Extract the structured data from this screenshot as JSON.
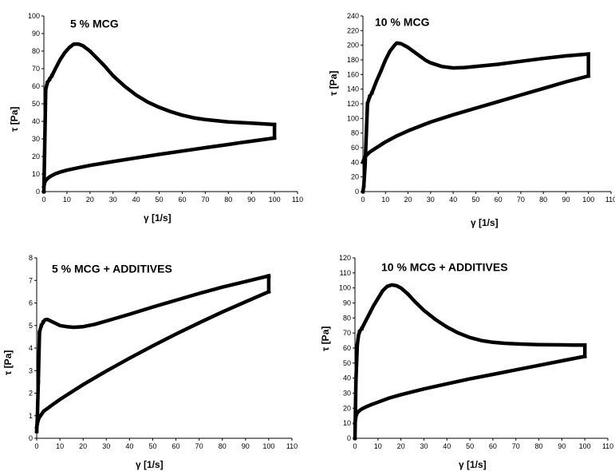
{
  "chart_data": [
    {
      "type": "line",
      "title": "5 % MCG",
      "xlabel": "γ [1/s]",
      "ylabel": "τ [Pa]",
      "xlim": [
        0,
        110
      ],
      "ylim": [
        0,
        100
      ],
      "xticks": [
        0,
        10,
        20,
        30,
        40,
        50,
        60,
        70,
        80,
        90,
        100,
        110
      ],
      "yticks": [
        0,
        10,
        20,
        30,
        40,
        50,
        60,
        70,
        80,
        90,
        100
      ],
      "grid": false,
      "series": [
        {
          "x": [
            0,
            0.3,
            0.8,
            1.5,
            2.5,
            3.5,
            5,
            7,
            9,
            11,
            13,
            15,
            17,
            20,
            23,
            26,
            30,
            35,
            40,
            45,
            50,
            55,
            60,
            65,
            70,
            75,
            80,
            85,
            90,
            95,
            100
          ],
          "y": [
            0,
            22,
            58,
            62,
            64,
            66,
            70,
            75,
            79,
            82,
            84,
            84,
            83,
            80,
            76,
            72,
            66,
            60,
            55,
            51,
            48,
            45.5,
            43.5,
            42,
            41,
            40.3,
            39.7,
            39.3,
            39,
            38.6,
            38.2
          ]
        },
        {
          "x": [
            100,
            100
          ],
          "y": [
            38.2,
            30.5
          ]
        },
        {
          "x": [
            100,
            95,
            90,
            85,
            80,
            70,
            60,
            50,
            40,
            30,
            20,
            15,
            10,
            7,
            5,
            3,
            2,
            1,
            0.5,
            0.2,
            0
          ],
          "y": [
            30.5,
            29.6,
            28.7,
            27.8,
            26.8,
            25,
            23.1,
            21.2,
            19.2,
            17.1,
            14.9,
            13.6,
            12.2,
            11.1,
            10.2,
            8.8,
            7.9,
            6.7,
            5.6,
            4.2,
            3
          ]
        }
      ]
    },
    {
      "type": "line",
      "title": "10 % MCG",
      "xlabel": "γ [1/s]",
      "ylabel": "τ [Pa]",
      "xlim": [
        0,
        110
      ],
      "ylim": [
        0,
        240
      ],
      "xticks": [
        0,
        10,
        20,
        30,
        40,
        50,
        60,
        70,
        80,
        90,
        100,
        110
      ],
      "yticks": [
        0,
        20,
        40,
        60,
        80,
        100,
        120,
        140,
        160,
        180,
        200,
        220,
        240
      ],
      "grid": false,
      "series": [
        {
          "x": [
            0,
            0.4,
            1,
            2,
            3,
            4,
            5,
            6,
            8,
            10,
            12,
            14,
            15,
            17,
            20,
            24,
            28,
            30,
            35,
            40,
            45,
            50,
            60,
            70,
            80,
            90,
            100
          ],
          "y": [
            0,
            8,
            38,
            120,
            130,
            135,
            143,
            151,
            165,
            180,
            192,
            200,
            203,
            202,
            197,
            188,
            179,
            176,
            171,
            169,
            169.5,
            171,
            174,
            178,
            182,
            185.5,
            188
          ]
        },
        {
          "x": [
            100,
            100
          ],
          "y": [
            188,
            158
          ]
        },
        {
          "x": [
            100,
            90,
            80,
            70,
            60,
            50,
            40,
            30,
            20,
            15,
            10,
            7,
            5,
            3,
            2,
            1,
            0.5,
            0
          ],
          "y": [
            158,
            150,
            141,
            132,
            123,
            114,
            105,
            95,
            83,
            76,
            68,
            62,
            58,
            54,
            51,
            48,
            45,
            40
          ]
        }
      ]
    },
    {
      "type": "line",
      "title": "5 % MCG +  ADDITIVES",
      "xlabel": "γ [1/s]",
      "ylabel": "τ [Pa]",
      "xlim": [
        0,
        110
      ],
      "ylim": [
        0,
        8
      ],
      "xticks": [
        0,
        10,
        20,
        30,
        40,
        50,
        60,
        70,
        80,
        90,
        100,
        110
      ],
      "yticks": [
        0,
        1,
        2,
        3,
        4,
        5,
        6,
        7,
        8
      ],
      "grid": false,
      "series": [
        {
          "x": [
            0,
            0.3,
            0.7,
            1.2,
            2,
            2.8,
            3.5,
            4.5,
            6,
            8,
            10,
            13,
            16,
            20,
            25,
            30,
            40,
            50,
            60,
            70,
            80,
            90,
            100
          ],
          "y": [
            0.3,
            1,
            2.5,
            4.7,
            5.0,
            5.15,
            5.25,
            5.27,
            5.2,
            5.1,
            5.0,
            4.95,
            4.92,
            4.95,
            5.05,
            5.2,
            5.5,
            5.82,
            6.12,
            6.42,
            6.7,
            6.95,
            7.2
          ]
        },
        {
          "x": [
            100,
            100
          ],
          "y": [
            7.2,
            6.5
          ]
        },
        {
          "x": [
            100,
            90,
            80,
            70,
            60,
            50,
            40,
            30,
            20,
            15,
            10,
            7,
            5,
            3,
            2,
            1,
            0.5,
            0
          ],
          "y": [
            6.5,
            6.05,
            5.6,
            5.12,
            4.62,
            4.1,
            3.55,
            2.98,
            2.38,
            2.05,
            1.72,
            1.5,
            1.35,
            1.2,
            1.05,
            0.9,
            0.75,
            0.5
          ]
        }
      ]
    },
    {
      "type": "line",
      "title": "10 %  MCG + ADDITIVES",
      "xlabel": "γ [1/s]",
      "ylabel": "τ [Pa]",
      "xlim": [
        0,
        110
      ],
      "ylim": [
        0,
        120
      ],
      "xticks": [
        0,
        10,
        20,
        30,
        40,
        50,
        60,
        70,
        80,
        90,
        100,
        110
      ],
      "yticks": [
        0,
        10,
        20,
        30,
        40,
        50,
        60,
        70,
        80,
        90,
        100,
        110,
        120
      ],
      "grid": false,
      "series": [
        {
          "x": [
            0,
            0.4,
            1,
            1.5,
            2,
            3,
            4,
            5,
            6,
            8,
            10,
            12,
            14,
            16,
            18,
            20,
            23,
            26,
            30,
            35,
            40,
            45,
            50,
            55,
            60,
            65,
            70,
            75,
            80,
            85,
            90,
            95,
            100
          ],
          "y": [
            0,
            38,
            62,
            68,
            71,
            73,
            76,
            79,
            82,
            88,
            93,
            98,
            101,
            102,
            101.5,
            100,
            96,
            91,
            85,
            79,
            74,
            70,
            67,
            65,
            63.8,
            63.2,
            62.8,
            62.5,
            62.3,
            62.2,
            62.1,
            62,
            62
          ]
        },
        {
          "x": [
            100,
            100
          ],
          "y": [
            62,
            54.5
          ]
        },
        {
          "x": [
            100,
            90,
            80,
            70,
            60,
            50,
            40,
            30,
            20,
            15,
            10,
            7,
            5,
            3,
            2,
            1,
            0.5,
            0
          ],
          "y": [
            54.5,
            51.5,
            48.5,
            45.5,
            42.5,
            39.5,
            36.2,
            32.8,
            29,
            26.8,
            24,
            22.3,
            21,
            19.5,
            18.5,
            17,
            15,
            10
          ]
        }
      ]
    }
  ]
}
